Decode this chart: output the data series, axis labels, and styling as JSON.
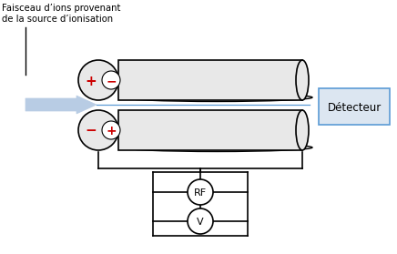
{
  "text_label1": "Faisceau d’ions provenant",
  "text_label2": "de la source d’ionisation",
  "detector_label": "Détecteur",
  "rf_label": "RF",
  "v_label": "V",
  "bg_color": "#ffffff",
  "rod_fill": "#e8e8e8",
  "rod_edge": "#000000",
  "detector_fill": "#dce6f1",
  "detector_edge": "#5b9bd5",
  "arrow_fill": "#b8cce4",
  "arrow_edge": "#b8cce4",
  "beam_line_color": "#5b9bd5",
  "plus_color": "#cc0000",
  "minus_color": "#cc0000",
  "black": "#000000"
}
